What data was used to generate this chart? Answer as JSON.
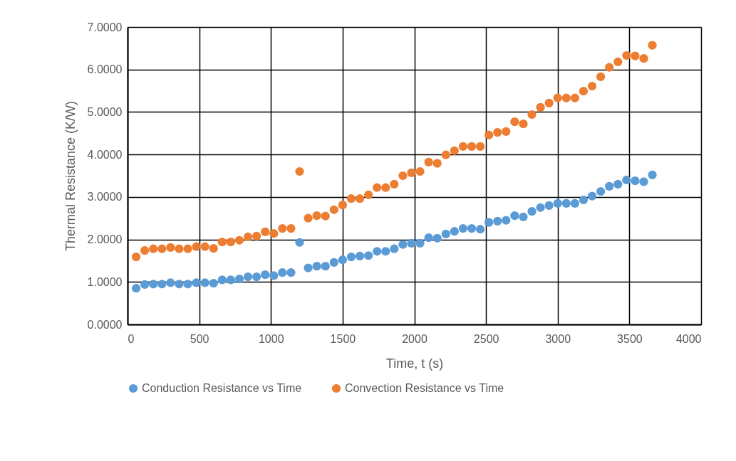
{
  "chart_data": {
    "type": "scatter",
    "xlabel": "Time, t (s)",
    "ylabel": "Thermal Resistance (K/W)",
    "x": [
      60,
      120,
      180,
      240,
      300,
      360,
      420,
      480,
      540,
      600,
      660,
      720,
      780,
      840,
      900,
      960,
      1020,
      1080,
      1140,
      1200,
      1260,
      1320,
      1380,
      1440,
      1500,
      1560,
      1620,
      1680,
      1740,
      1800,
      1860,
      1920,
      1980,
      2040,
      2100,
      2160,
      2220,
      2280,
      2340,
      2400,
      2460,
      2520,
      2580,
      2640,
      2700,
      2760,
      2820,
      2880,
      2940,
      3000,
      3060,
      3120,
      3180,
      3240,
      3300,
      3360,
      3420,
      3480,
      3540,
      3600,
      3660
    ],
    "series": [
      {
        "name": "Conduction Resistance vs Time",
        "color": "#5b9bd5",
        "values": [
          0.85,
          0.94,
          0.95,
          0.95,
          0.98,
          0.95,
          0.95,
          0.98,
          0.98,
          0.97,
          1.05,
          1.05,
          1.07,
          1.12,
          1.12,
          1.17,
          1.15,
          1.22,
          1.22,
          1.93,
          1.33,
          1.37,
          1.37,
          1.46,
          1.52,
          1.59,
          1.61,
          1.62,
          1.72,
          1.72,
          1.78,
          1.88,
          1.91,
          1.91,
          2.04,
          2.03,
          2.13,
          2.19,
          2.26,
          2.26,
          2.24,
          2.4,
          2.43,
          2.45,
          2.56,
          2.53,
          2.66,
          2.75,
          2.8,
          2.85,
          2.85,
          2.85,
          2.93,
          3.02,
          3.13,
          3.25,
          3.3,
          3.4,
          3.38,
          3.36,
          3.52
        ]
      },
      {
        "name": "Convection Resistance vs Time",
        "color": "#ed7d31",
        "values": [
          1.59,
          1.74,
          1.78,
          1.78,
          1.81,
          1.78,
          1.78,
          1.83,
          1.83,
          1.79,
          1.94,
          1.94,
          1.98,
          2.06,
          2.08,
          2.18,
          2.14,
          2.26,
          2.26,
          3.6,
          2.5,
          2.56,
          2.55,
          2.7,
          2.81,
          2.96,
          2.96,
          3.05,
          3.22,
          3.22,
          3.3,
          3.5,
          3.57,
          3.6,
          3.82,
          3.79,
          3.99,
          4.09,
          4.19,
          4.19,
          4.19,
          4.46,
          4.52,
          4.54,
          4.77,
          4.72,
          4.94,
          5.11,
          5.21,
          5.33,
          5.33,
          5.33,
          5.49,
          5.61,
          5.83,
          6.05,
          6.18,
          6.33,
          6.32,
          6.26,
          6.57
        ]
      }
    ],
    "xlim": [
      0,
      4000
    ],
    "xticks": [
      0,
      500,
      1000,
      1500,
      2000,
      2500,
      3000,
      3500,
      4000
    ],
    "ylim": [
      0,
      7
    ],
    "yticks": [
      {
        "value": 0,
        "label": "0.0000"
      },
      {
        "value": 1,
        "label": "1.0000"
      },
      {
        "value": 2,
        "label": "2.0000"
      },
      {
        "value": 3,
        "label": "3.0000"
      },
      {
        "value": 4,
        "label": "4.0000"
      },
      {
        "value": 5,
        "label": "5.0000"
      },
      {
        "value": 6,
        "label": "6.0000"
      },
      {
        "value": 7,
        "label": "7.0000"
      }
    ],
    "grid": true,
    "legend": "bottom",
    "marker": "circle"
  }
}
